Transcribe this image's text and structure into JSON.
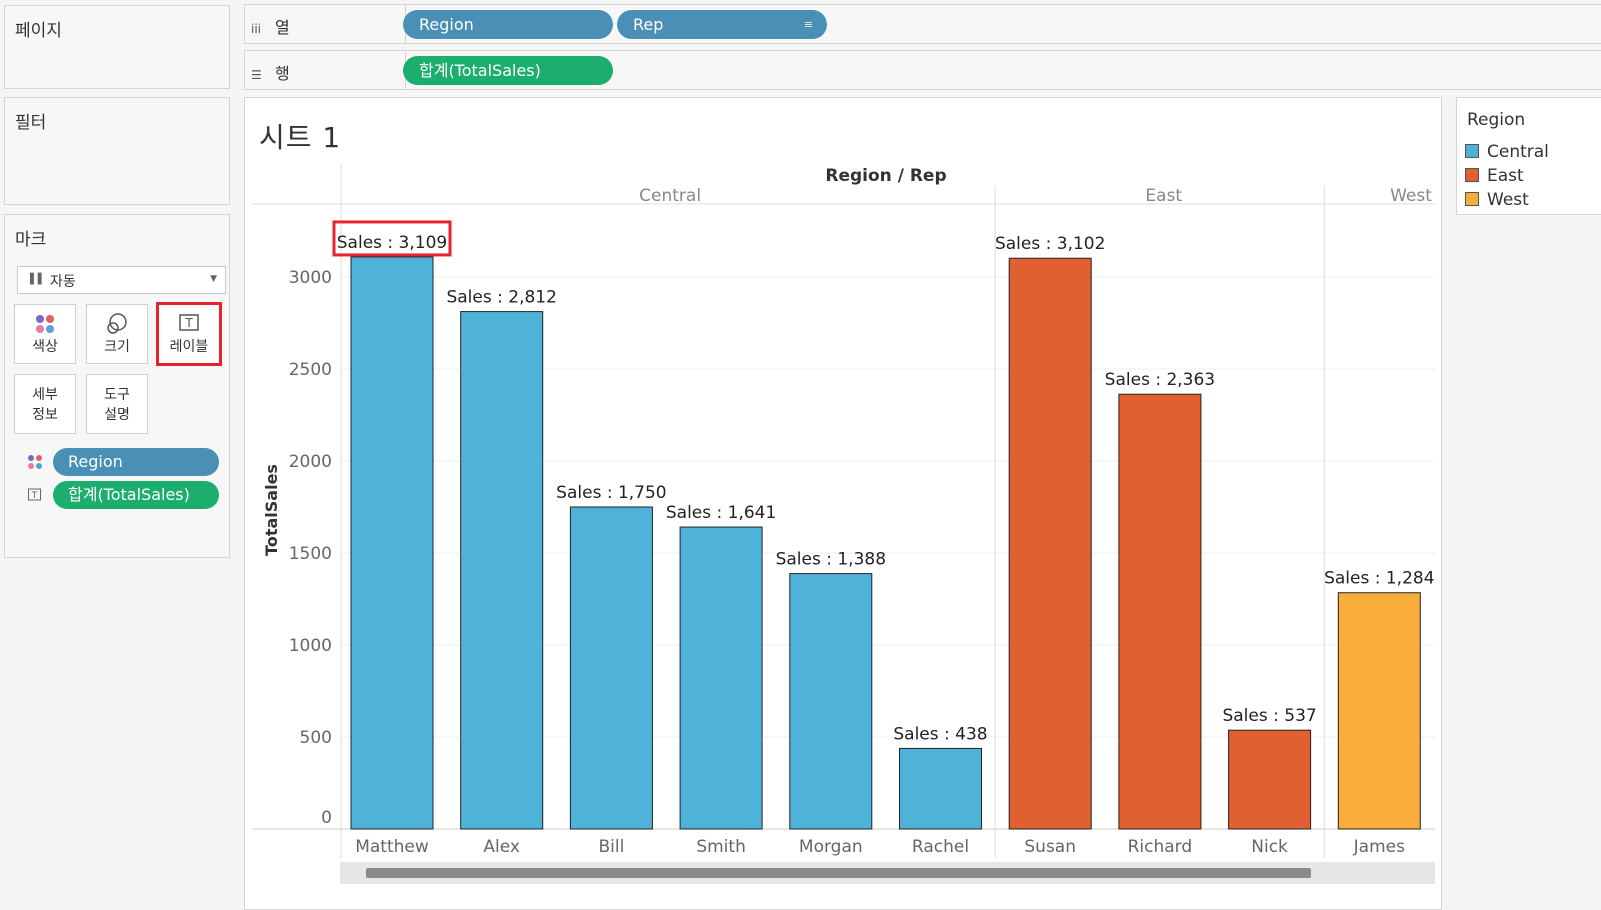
{
  "left_panels": {
    "pages_title": "페이지",
    "filters_title": "필터",
    "marks_title": "마크"
  },
  "marks": {
    "type_select": "자동",
    "buttons": {
      "color": "색상",
      "size": "크기",
      "label": "레이블",
      "detail_line1": "세부",
      "detail_line2": "정보",
      "tooltip_line1": "도구",
      "tooltip_line2": "설명"
    },
    "fields": [
      "Region",
      "합계(TotalSales)"
    ]
  },
  "shelves": {
    "columns_label": "열",
    "rows_label": "행",
    "columns_pills": [
      "Region",
      "Rep"
    ],
    "rows_pills": [
      "합계(TotalSales)"
    ]
  },
  "sheet": {
    "title": "시트 1"
  },
  "legend": {
    "title": "Region",
    "items": [
      {
        "label": "Central",
        "color": "#4fb3d9"
      },
      {
        "label": "East",
        "color": "#e06031"
      },
      {
        "label": "West",
        "color": "#f7ac3b"
      }
    ]
  },
  "chart_data": {
    "type": "bar",
    "title": "Region / Rep",
    "ylabel": "TotalSales",
    "ylim": [
      0,
      3250
    ],
    "yticks": [
      0,
      500,
      1000,
      1500,
      2000,
      2500,
      3000
    ],
    "label_prefix": "Sales : ",
    "groups": [
      {
        "name": "Central",
        "color": "#4fb3d9",
        "categories": [
          "Matthew",
          "Alex",
          "Bill",
          "Smith",
          "Morgan",
          "Rachel"
        ],
        "values": [
          3109,
          2812,
          1750,
          1641,
          1388,
          438
        ]
      },
      {
        "name": "East",
        "color": "#e06031",
        "categories": [
          "Susan",
          "Richard",
          "Nick"
        ],
        "values": [
          3102,
          2363,
          537
        ]
      },
      {
        "name": "West",
        "color": "#f7ac3b",
        "categories": [
          "James"
        ],
        "values": [
          1284
        ]
      }
    ],
    "highlighted_label": "Matthew",
    "grid": true
  }
}
